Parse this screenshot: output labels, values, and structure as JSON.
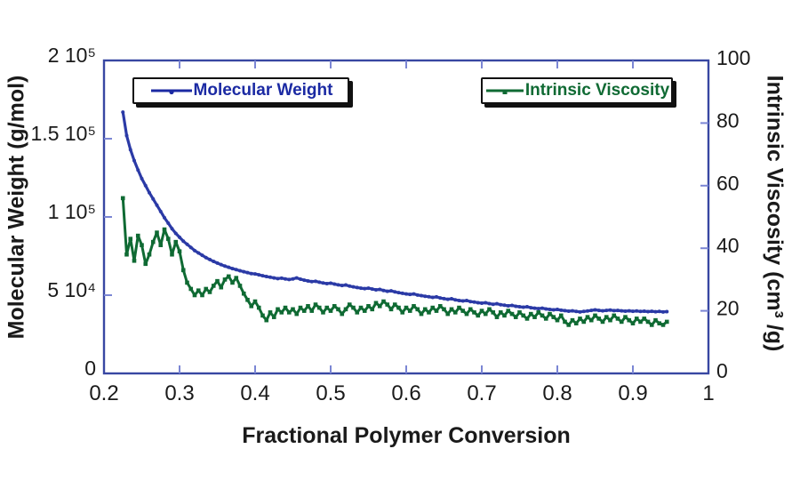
{
  "chart_data": {
    "type": "line",
    "title": "",
    "grid": false,
    "frame_color": "#3847a2",
    "tick_color": "#7b86d4",
    "text_color": "#1a1a1a",
    "axes": {
      "x": {
        "label": "Fractional Polymer Conversion",
        "min": 0.2,
        "max": 1,
        "ticks": [
          {
            "value": 0.2,
            "label": "0.2"
          },
          {
            "value": 0.3,
            "label": "0.3"
          },
          {
            "value": 0.4,
            "label": "0.4"
          },
          {
            "value": 0.5,
            "label": "0.5"
          },
          {
            "value": 0.6,
            "label": "0.6"
          },
          {
            "value": 0.7,
            "label": "0.7"
          },
          {
            "value": 0.8,
            "label": "0.8"
          },
          {
            "value": 0.9,
            "label": "0.9"
          },
          {
            "value": 1,
            "label": "1"
          }
        ]
      },
      "y_left": {
        "label": "Molecular Weight (g/mol)",
        "min": 0,
        "max": 200000,
        "ticks": [
          {
            "value": 0,
            "label": "0"
          },
          {
            "value": 50000,
            "label": "5 10⁴"
          },
          {
            "value": 100000,
            "label": "1 10⁵"
          },
          {
            "value": 150000,
            "label": "1.5 10⁵"
          },
          {
            "value": 200000,
            "label": "2 10⁵"
          }
        ]
      },
      "y_right": {
        "label": "Intrinsic Viscosity (cm³ /g)",
        "min": 0,
        "max": 100,
        "ticks": [
          {
            "value": 0,
            "label": "0"
          },
          {
            "value": 20,
            "label": "20"
          },
          {
            "value": 40,
            "label": "40"
          },
          {
            "value": 60,
            "label": "60"
          },
          {
            "value": 80,
            "label": "80"
          },
          {
            "value": 100,
            "label": "100"
          }
        ]
      }
    },
    "legend": [
      {
        "label": "Molecular Weight",
        "color": "#1b2aa3"
      },
      {
        "label": "Intrinsic Viscosity",
        "color": "#0f6a33"
      }
    ],
    "series": [
      {
        "name": "Molecular Weight",
        "axis": "left",
        "color": "#2b3aa6",
        "marker": "circle",
        "unit": "g/mol",
        "value_scale": 1000,
        "x_start": 0.225,
        "x_step": 0.005,
        "values": [
          167,
          152,
          143,
          136,
          130,
          124.5,
          120,
          115.5,
          111.5,
          107.5,
          103.5,
          99.5,
          96,
          92.5,
          89.5,
          87,
          84.5,
          82.5,
          80.5,
          78.5,
          77,
          75.5,
          74,
          72.8,
          71.6,
          70.5,
          69.5,
          68.6,
          67.8,
          67,
          66.3,
          65.6,
          65,
          64.4,
          63.8,
          63.6,
          63,
          62.4,
          61.9,
          61.5,
          61,
          60.6,
          60.9,
          60.4,
          60,
          60.4,
          61,
          60.2,
          59.6,
          59.1,
          58.7,
          58.9,
          58.3,
          57.8,
          57.4,
          57.7,
          57.1,
          56.6,
          56.2,
          56.5,
          55.8,
          55.3,
          54.9,
          54.5,
          54.2,
          54.5,
          53.9,
          53.4,
          53.7,
          53,
          52.5,
          52.8,
          52.1,
          51.6,
          51.2,
          50.8,
          50.5,
          50.8,
          50.1,
          49.7,
          49.3,
          49,
          48.6,
          48.9,
          48.2,
          47.8,
          47.4,
          47.7,
          47,
          46.6,
          46.3,
          46.6,
          45.9,
          45.6,
          45.2,
          44.9,
          45.2,
          44.6,
          44.2,
          44.5,
          43.9,
          43.6,
          43.2,
          43.5,
          42.9,
          42.6,
          42.3,
          42.6,
          42,
          41.7,
          41.4,
          41.7,
          41.2,
          40.9,
          40.6,
          40.9,
          40.4,
          40.1,
          39.8,
          40,
          39.6,
          39.3,
          39.6,
          39.9,
          40.3,
          40.6,
          40.3,
          40,
          40.3,
          40.5,
          40.1,
          40.3,
          40,
          39.8,
          40,
          39.7,
          39.9,
          39.6,
          39.8,
          39.5,
          39.7,
          39.4,
          39.6,
          39.3,
          39.5
        ]
      },
      {
        "name": "Intrinsic Viscosity",
        "axis": "right",
        "color": "#0f6a33",
        "marker": "square",
        "unit": "cm³/g",
        "value_scale": 1,
        "x_start": 0.225,
        "x_step": 0.005,
        "values": [
          56,
          38,
          43,
          36,
          44,
          41,
          35,
          38,
          42,
          45,
          41,
          46,
          43,
          38,
          42,
          39,
          33,
          29,
          27,
          25,
          26.5,
          25,
          27,
          26,
          28,
          29.5,
          27.5,
          30,
          31,
          29,
          30.5,
          28,
          25.5,
          23.5,
          21.5,
          23,
          21,
          18.5,
          17,
          19.5,
          18,
          20.5,
          19.5,
          21,
          19.5,
          20.5,
          19,
          21,
          20,
          21.5,
          20,
          22,
          21,
          19.5,
          21,
          20,
          21.5,
          20.5,
          19,
          20.5,
          22,
          21,
          19.5,
          21,
          20,
          21.5,
          20.5,
          22.5,
          21.5,
          23,
          22,
          20.5,
          22,
          21,
          19.5,
          21,
          20,
          21.5,
          20.5,
          19,
          20.5,
          19.5,
          21,
          20,
          21.5,
          20.5,
          19,
          20.5,
          19.5,
          21,
          20,
          19,
          20.5,
          19.5,
          18.5,
          20,
          19,
          20.5,
          19.5,
          18,
          19.5,
          18.5,
          20,
          19,
          18,
          19.5,
          18.5,
          17.5,
          19,
          18,
          19.5,
          18.5,
          17.5,
          19,
          18,
          17,
          18.5,
          16.5,
          15.5,
          17,
          16,
          17.5,
          16.5,
          18,
          17,
          18.5,
          17.5,
          16.5,
          18,
          17,
          18.5,
          17.5,
          16.5,
          18,
          17,
          16,
          17.5,
          16.5,
          17.5,
          16.5,
          15.5,
          17,
          16,
          15.5,
          16.5
        ]
      }
    ]
  }
}
